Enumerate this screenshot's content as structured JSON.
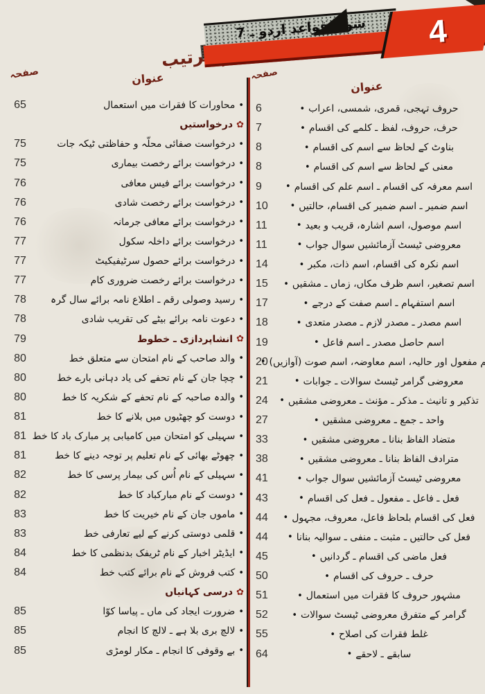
{
  "banner": {
    "badge_number": "4",
    "series_title": "شوق قواعد اردو ـ 7"
  },
  "page_title": "حسنِ ترتیب",
  "icons": {
    "bullet": "•",
    "section_marker": "✿"
  },
  "colors": {
    "paper": "#eae6dd",
    "accent_red": "#df3517",
    "divider_red": "#a0281b",
    "maroon_heading": "#6e2014",
    "ink": "#16130f"
  },
  "columns": {
    "right": {
      "page_header": "صفحہ",
      "title_header": "عنوان",
      "rows": [
        {
          "page": "6",
          "title": "حروف تہجی، قمری، شمسی، اعراب"
        },
        {
          "page": "7",
          "title": "حرف، حروف، لفظ ـ کلمے کی اقسام"
        },
        {
          "page": "8",
          "title": "بناوٹ کے لحاظ سے اسم کی اقسام"
        },
        {
          "page": "8",
          "title": "معنی کے لحاظ سے اسم کی اقسام"
        },
        {
          "page": "9",
          "title": "اسم معرفہ کی اقسام ـ اسم علم کی اقسام"
        },
        {
          "page": "10",
          "title": "اسم ضمیر ـ اسم ضمیر کی اقسام، حالتیں"
        },
        {
          "page": "11",
          "title": "اسم موصول، اسم اشارہ، قریب و بعید"
        },
        {
          "page": "11",
          "title": "معروضی ٹیسٹ آزمائشیں سوال جواب"
        },
        {
          "page": "14",
          "title": "اسم نکرہ کی اقسام، اسم ذات، مکبر"
        },
        {
          "page": "15",
          "title": "اسم تصغیر، اسم ظرف مکاں، زماں ـ مشقیں"
        },
        {
          "page": "17",
          "title": "اسم استفہام ـ اسم صفت کے درجے"
        },
        {
          "page": "18",
          "title": "اسم مصدر ـ مصدر لازم ـ مصدر متعدی"
        },
        {
          "page": "19",
          "title": "اسم حاصل مصدر ـ اسم فاعل"
        },
        {
          "page": "20",
          "title": "اسم مفعول اور حالیہ، اسم معاوضہ، اسم صوت (آوازیں)"
        },
        {
          "page": "21",
          "title": "معروضی گرامر ٹیسٹ سوالات ـ جوابات"
        },
        {
          "page": "24",
          "title": "تذکیر و تانیث ـ مذکر ـ مؤنث ـ معروضی مشقیں"
        },
        {
          "page": "27",
          "title": "واحد ـ جمع ـ معروضی مشقیں"
        },
        {
          "page": "33",
          "title": "متضاد الفاظ بنانا ـ معروضی مشقیں"
        },
        {
          "page": "38",
          "title": "مترادف الفاظ بنانا ـ معروضی مشقیں"
        },
        {
          "page": "41",
          "title": "معروضی ٹیسٹ آزمائشیں سوال جواب"
        },
        {
          "page": "43",
          "title": "فعل ـ فاعل ـ مفعول ـ فعل کی اقسام"
        },
        {
          "page": "44",
          "title": "فعل کی اقسام بلحاظ فاعل، معروف، مجہول"
        },
        {
          "page": "44",
          "title": "فعل کی حالتیں ـ مثبت ـ منفی ـ سوالیہ بنانا"
        },
        {
          "page": "45",
          "title": "فعل ماضی کی اقسام ـ گردانیں"
        },
        {
          "page": "50",
          "title": "حرف ـ حروف کی اقسام"
        },
        {
          "page": "51",
          "title": "مشہور حروف کا فقرات میں استعمال"
        },
        {
          "page": "52",
          "title": "گرامر کے متفرق معروضی ٹیسٹ سوالات"
        },
        {
          "page": "55",
          "title": "غلط فقرات کی اصلاح"
        },
        {
          "page": "64",
          "title": "سابقے ـ لاحقے"
        }
      ]
    },
    "left": {
      "page_header": "صفحہ",
      "title_header": "عنوان",
      "rows": [
        {
          "page": "65",
          "title": "محاورات کا فقرات میں استعمال"
        },
        {
          "section": true,
          "title": "درخواستیں"
        },
        {
          "page": "75",
          "title": "درخواست صفائی محلّہ و حفاظتی ٹیکہ جات"
        },
        {
          "page": "75",
          "title": "درخواست برائے رخصت بیماری"
        },
        {
          "page": "76",
          "title": "درخواست برائے فیس معافی"
        },
        {
          "page": "76",
          "title": "درخواست برائے رخصت شادی"
        },
        {
          "page": "76",
          "title": "درخواست برائے معافی جرمانہ"
        },
        {
          "page": "77",
          "title": "درخواست برائے داخلہ سکول"
        },
        {
          "page": "77",
          "title": "درخواست برائے حصول سرٹیفیکیٹ"
        },
        {
          "page": "77",
          "title": "درخواست برائے رخصت ضروری کام"
        },
        {
          "page": "78",
          "title": "رسید وصولی رقم ـ اطلاع نامہ برائے سال گرہ"
        },
        {
          "page": "78",
          "title": "دعوت نامہ برائے بیٹے کی تقریب شادی"
        },
        {
          "page": "79",
          "section": true,
          "title": "انشاپردازی ـ خطوط"
        },
        {
          "page": "80",
          "title": "والد صاحب کے نام امتحان سے متعلق خط"
        },
        {
          "page": "80",
          "title": "چچا جان کے نام تحفے کی یاد دہانی بارے خط"
        },
        {
          "page": "80",
          "title": "والدہ صاحبہ کے نام تحفے کے شکریہ کا خط"
        },
        {
          "page": "81",
          "title": "دوست کو چھٹیوں میں بلانے کا خط"
        },
        {
          "page": "81",
          "title": "سہیلی کو امتحان میں کامیابی پر مبارک باد کا خط"
        },
        {
          "page": "81",
          "title": "چھوٹے بھائی کے نام تعلیم پر توجہ دینے کا خط"
        },
        {
          "page": "82",
          "title": "سہیلی کے نام اُس کی بیمار پرسی کا خط"
        },
        {
          "page": "82",
          "title": "دوست کے نام مبارکباد کا خط"
        },
        {
          "page": "83",
          "title": "ماموں جان کے نام خیریت کا خط"
        },
        {
          "page": "83",
          "title": "قلمی دوستی کرنے کے لیے تعارفی خط"
        },
        {
          "page": "84",
          "title": "ایڈیٹر اخبار کے نام ٹریفک بدنظمی کا خط"
        },
        {
          "page": "84",
          "title": "کتب فروش کے نام برائے کتب خط"
        },
        {
          "section": true,
          "title": "درسی کہانیاں"
        },
        {
          "page": "85",
          "title": "ضرورت ایجاد کی ماں ـ پیاسا کوّا"
        },
        {
          "page": "85",
          "title": "لالچ بری بلا ہے ـ لالچ کا انجام"
        },
        {
          "page": "85",
          "title": "بے وقوفی کا انجام ـ مکار لومڑی"
        }
      ]
    }
  }
}
